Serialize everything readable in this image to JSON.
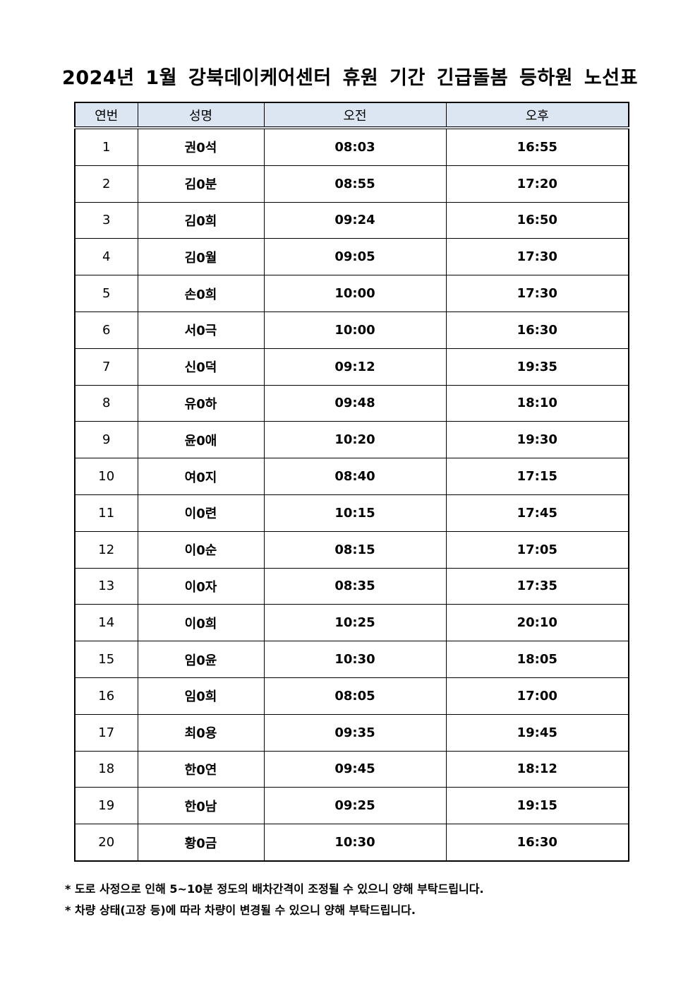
{
  "title": "2024년 1월 강북데이케어센터 휴원 기간 긴급돌봄 등하원 노선표",
  "table": {
    "headers": [
      "연번",
      "성명",
      "오전",
      "오후"
    ],
    "header_bg": "#dce6f2",
    "rows": [
      [
        "1",
        "권0석",
        "08:03",
        "16:55"
      ],
      [
        "2",
        "김0분",
        "08:55",
        "17:20"
      ],
      [
        "3",
        "김0희",
        "09:24",
        "16:50"
      ],
      [
        "4",
        "김0월",
        "09:05",
        "17:30"
      ],
      [
        "5",
        "손0희",
        "10:00",
        "17:30"
      ],
      [
        "6",
        "서0극",
        "10:00",
        "16:30"
      ],
      [
        "7",
        "신0덕",
        "09:12",
        "19:35"
      ],
      [
        "8",
        "유0하",
        "09:48",
        "18:10"
      ],
      [
        "9",
        "윤0애",
        "10:20",
        "19:30"
      ],
      [
        "10",
        "여0지",
        "08:40",
        "17:15"
      ],
      [
        "11",
        "이0련",
        "10:15",
        "17:45"
      ],
      [
        "12",
        "이0순",
        "08:15",
        "17:05"
      ],
      [
        "13",
        "이0자",
        "08:35",
        "17:35"
      ],
      [
        "14",
        "이0희",
        "10:25",
        "20:10"
      ],
      [
        "15",
        "임0윤",
        "10:30",
        "18:05"
      ],
      [
        "16",
        "임0희",
        "08:05",
        "17:00"
      ],
      [
        "17",
        "최0용",
        "09:35",
        "19:45"
      ],
      [
        "18",
        "한0연",
        "09:45",
        "18:12"
      ],
      [
        "19",
        "한0남",
        "09:25",
        "19:15"
      ],
      [
        "20",
        "황0금",
        "10:30",
        "16:30"
      ]
    ]
  },
  "notes": [
    "* 도로 사정으로 인해 5~10분 정도의 배차간격이 조정될 수 있으니 양해 부탁드립니다.",
    "* 차량 상태(고장 등)에 따라 차량이 변경될 수 있으니 양해 부탁드립니다."
  ]
}
